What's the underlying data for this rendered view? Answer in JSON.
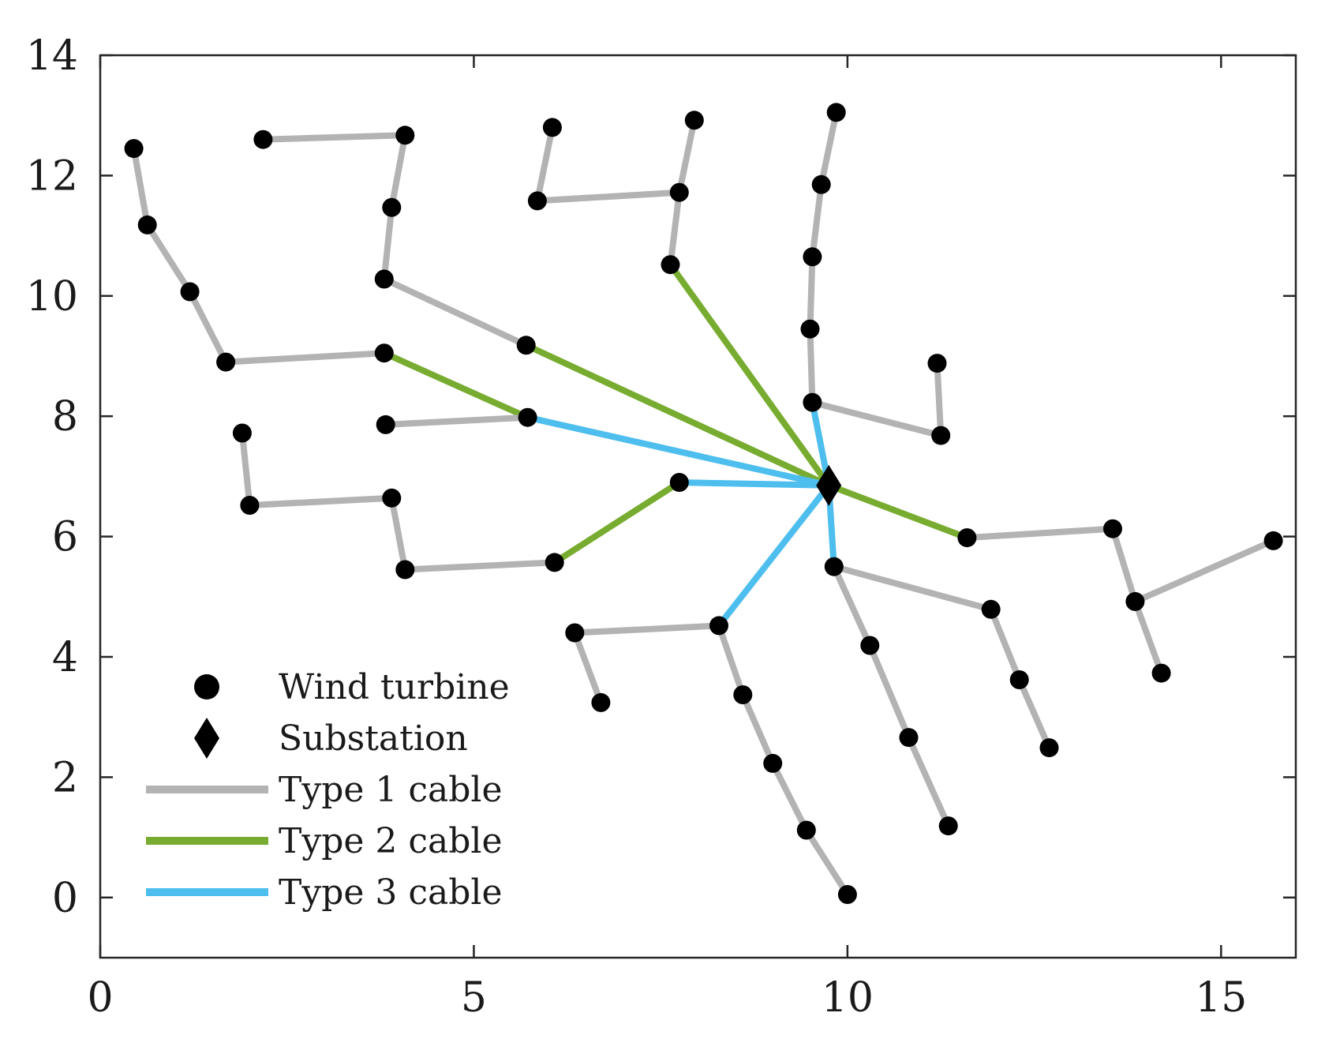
{
  "chart_data": {
    "type": "scatter",
    "title": "",
    "xlabel": "",
    "ylabel": "",
    "xlim": [
      0,
      16
    ],
    "ylim": [
      -1,
      14
    ],
    "x_ticks": [
      0,
      5,
      10,
      15
    ],
    "y_ticks": [
      0,
      2,
      4,
      6,
      8,
      10,
      12,
      14
    ],
    "grid": false,
    "legend_position": "bottom-left",
    "colors": {
      "turbine": "#000000",
      "substation": "#000000",
      "type1": "#b3b3b3",
      "type2": "#77ac30",
      "type3": "#4dbeee"
    },
    "substation": {
      "x": 9.75,
      "y": 6.85
    },
    "turbines": [
      {
        "x": 0.45,
        "y": 12.45
      },
      {
        "x": 0.63,
        "y": 11.18
      },
      {
        "x": 1.2,
        "y": 10.07
      },
      {
        "x": 1.68,
        "y": 8.9
      },
      {
        "x": 3.8,
        "y": 9.05
      },
      {
        "x": 2.18,
        "y": 12.6
      },
      {
        "x": 4.08,
        "y": 12.67
      },
      {
        "x": 3.9,
        "y": 11.47
      },
      {
        "x": 3.8,
        "y": 10.28
      },
      {
        "x": 5.7,
        "y": 9.18
      },
      {
        "x": 1.9,
        "y": 7.72
      },
      {
        "x": 2.0,
        "y": 6.52
      },
      {
        "x": 3.9,
        "y": 6.64
      },
      {
        "x": 4.08,
        "y": 5.45
      },
      {
        "x": 6.08,
        "y": 5.57
      },
      {
        "x": 3.82,
        "y": 7.86
      },
      {
        "x": 5.72,
        "y": 7.98
      },
      {
        "x": 6.05,
        "y": 12.8
      },
      {
        "x": 5.85,
        "y": 11.58
      },
      {
        "x": 7.75,
        "y": 11.72
      },
      {
        "x": 7.95,
        "y": 12.92
      },
      {
        "x": 7.63,
        "y": 10.52
      },
      {
        "x": 7.75,
        "y": 6.9
      },
      {
        "x": 9.85,
        "y": 13.05
      },
      {
        "x": 9.65,
        "y": 11.85
      },
      {
        "x": 9.53,
        "y": 10.65
      },
      {
        "x": 9.5,
        "y": 9.45
      },
      {
        "x": 9.53,
        "y": 8.23
      },
      {
        "x": 11.2,
        "y": 8.88
      },
      {
        "x": 11.25,
        "y": 7.68
      },
      {
        "x": 11.6,
        "y": 5.98
      },
      {
        "x": 13.55,
        "y": 6.13
      },
      {
        "x": 13.85,
        "y": 4.92
      },
      {
        "x": 15.7,
        "y": 5.93
      },
      {
        "x": 14.2,
        "y": 3.73
      },
      {
        "x": 9.82,
        "y": 5.5
      },
      {
        "x": 11.92,
        "y": 4.79
      },
      {
        "x": 12.3,
        "y": 3.62
      },
      {
        "x": 12.7,
        "y": 2.49
      },
      {
        "x": 10.3,
        "y": 4.19
      },
      {
        "x": 10.82,
        "y": 2.66
      },
      {
        "x": 11.35,
        "y": 1.19
      },
      {
        "x": 8.28,
        "y": 4.52
      },
      {
        "x": 8.6,
        "y": 3.37
      },
      {
        "x": 9.0,
        "y": 2.23
      },
      {
        "x": 9.45,
        "y": 1.12
      },
      {
        "x": 10.0,
        "y": 0.05
      },
      {
        "x": 6.35,
        "y": 4.4
      },
      {
        "x": 6.7,
        "y": 3.24
      }
    ],
    "cables": [
      {
        "type": 1,
        "path": [
          [
            0.45,
            12.45
          ],
          [
            0.63,
            11.18
          ],
          [
            1.2,
            10.07
          ],
          [
            1.68,
            8.9
          ],
          [
            3.8,
            9.05
          ]
        ]
      },
      {
        "type": 2,
        "path": [
          [
            3.8,
            9.05
          ],
          [
            5.72,
            7.98
          ]
        ]
      },
      {
        "type": 1,
        "path": [
          [
            2.18,
            12.6
          ],
          [
            4.08,
            12.67
          ],
          [
            3.9,
            11.47
          ],
          [
            3.8,
            10.28
          ],
          [
            5.7,
            9.18
          ]
        ]
      },
      {
        "type": 2,
        "path": [
          [
            5.7,
            9.18
          ],
          [
            9.75,
            6.85
          ]
        ]
      },
      {
        "type": 1,
        "path": [
          [
            1.9,
            7.72
          ],
          [
            2.0,
            6.52
          ],
          [
            3.9,
            6.64
          ],
          [
            4.08,
            5.45
          ],
          [
            6.08,
            5.57
          ]
        ]
      },
      {
        "type": 2,
        "path": [
          [
            6.08,
            5.57
          ],
          [
            7.75,
            6.9
          ]
        ]
      },
      {
        "type": 3,
        "path": [
          [
            7.75,
            6.9
          ],
          [
            9.75,
            6.85
          ]
        ]
      },
      {
        "type": 1,
        "path": [
          [
            3.82,
            7.86
          ],
          [
            5.72,
            7.98
          ]
        ]
      },
      {
        "type": 3,
        "path": [
          [
            5.72,
            7.98
          ],
          [
            9.75,
            6.85
          ]
        ]
      },
      {
        "type": 1,
        "path": [
          [
            6.05,
            12.8
          ],
          [
            5.85,
            11.58
          ],
          [
            7.75,
            11.72
          ]
        ]
      },
      {
        "type": 1,
        "path": [
          [
            7.95,
            12.92
          ],
          [
            7.75,
            11.72
          ],
          [
            7.63,
            10.52
          ]
        ]
      },
      {
        "type": 2,
        "path": [
          [
            7.63,
            10.52
          ],
          [
            9.75,
            6.85
          ]
        ]
      },
      {
        "type": 1,
        "path": [
          [
            9.85,
            13.05
          ],
          [
            9.65,
            11.85
          ],
          [
            9.53,
            10.65
          ],
          [
            9.5,
            9.45
          ],
          [
            9.53,
            8.23
          ]
        ]
      },
      {
        "type": 1,
        "path": [
          [
            11.2,
            8.88
          ],
          [
            11.25,
            7.68
          ],
          [
            9.53,
            8.23
          ]
        ]
      },
      {
        "type": 3,
        "path": [
          [
            9.53,
            8.23
          ],
          [
            9.75,
            6.85
          ]
        ]
      },
      {
        "type": 1,
        "path": [
          [
            15.7,
            5.93
          ],
          [
            13.85,
            4.92
          ],
          [
            13.55,
            6.13
          ],
          [
            11.6,
            5.98
          ]
        ]
      },
      {
        "type": 1,
        "path": [
          [
            14.2,
            3.73
          ],
          [
            13.85,
            4.92
          ]
        ]
      },
      {
        "type": 2,
        "path": [
          [
            11.6,
            5.98
          ],
          [
            9.75,
            6.85
          ]
        ]
      },
      {
        "type": 1,
        "path": [
          [
            12.7,
            2.49
          ],
          [
            12.3,
            3.62
          ],
          [
            11.92,
            4.79
          ],
          [
            9.82,
            5.5
          ]
        ]
      },
      {
        "type": 1,
        "path": [
          [
            11.35,
            1.19
          ],
          [
            10.82,
            2.66
          ],
          [
            10.3,
            4.19
          ],
          [
            9.82,
            5.5
          ]
        ]
      },
      {
        "type": 3,
        "path": [
          [
            9.82,
            5.5
          ],
          [
            9.75,
            6.85
          ]
        ]
      },
      {
        "type": 1,
        "path": [
          [
            10.0,
            0.05
          ],
          [
            9.45,
            1.12
          ],
          [
            9.0,
            2.23
          ],
          [
            8.6,
            3.37
          ],
          [
            8.28,
            4.52
          ]
        ]
      },
      {
        "type": 1,
        "path": [
          [
            6.7,
            3.24
          ],
          [
            6.35,
            4.4
          ],
          [
            8.28,
            4.52
          ]
        ]
      },
      {
        "type": 3,
        "path": [
          [
            8.28,
            4.52
          ],
          [
            9.75,
            6.85
          ]
        ]
      }
    ],
    "legend": [
      {
        "key": "turbine",
        "label": "Wind turbine"
      },
      {
        "key": "substation",
        "label": "Substation"
      },
      {
        "key": "type1",
        "label": "Type 1 cable"
      },
      {
        "key": "type2",
        "label": "Type 2 cable"
      },
      {
        "key": "type3",
        "label": "Type 3 cable"
      }
    ]
  }
}
